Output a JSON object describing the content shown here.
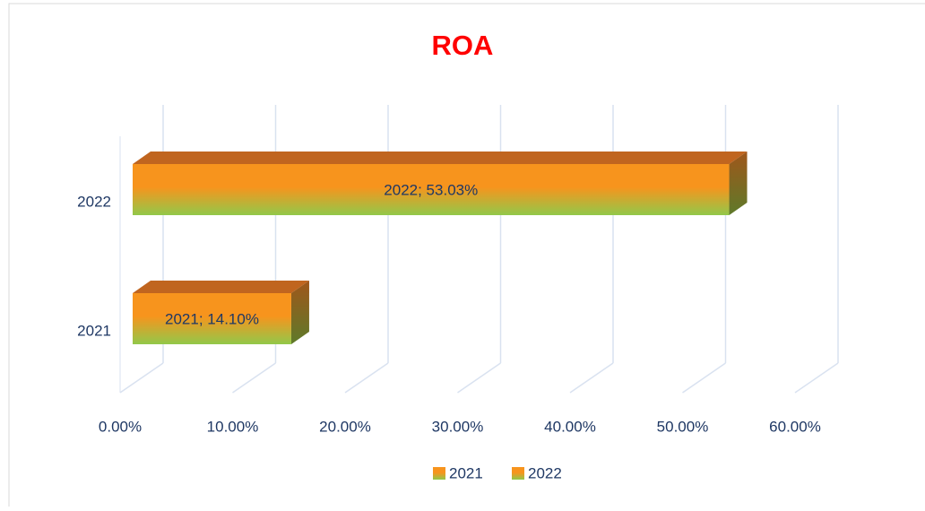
{
  "chart_data": {
    "type": "bar3d_horizontal",
    "title": "ROA",
    "categories": [
      "2021",
      "2022"
    ],
    "values": [
      14.1,
      53.03
    ],
    "value_labels": [
      "2021; 14.10%",
      "2022; 53.03%"
    ],
    "colors": {
      "top": "#f7941d",
      "bottom": "#92c84a"
    },
    "xlim": [
      0,
      60
    ],
    "xticks": [
      {
        "value": 0,
        "label": "0.00%"
      },
      {
        "value": 10,
        "label": "10.00%"
      },
      {
        "value": 20,
        "label": "20.00%"
      },
      {
        "value": 30,
        "label": "30.00%"
      },
      {
        "value": 40,
        "label": "40.00%"
      },
      {
        "value": 50,
        "label": "50.00%"
      },
      {
        "value": 60,
        "label": "60.00%"
      }
    ],
    "grid": true,
    "legend": "bottom"
  }
}
